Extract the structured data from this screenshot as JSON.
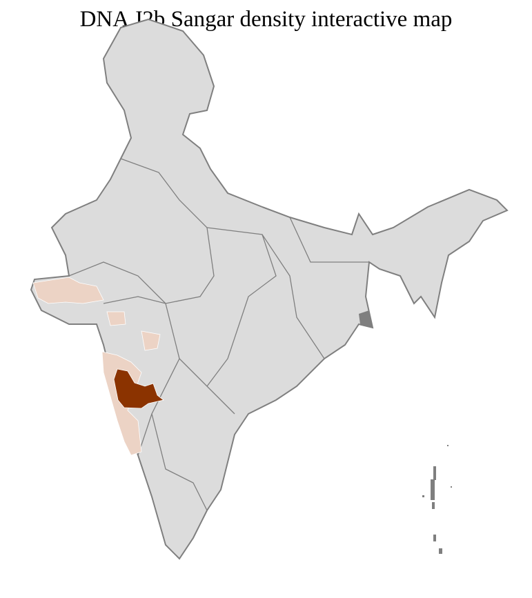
{
  "title": "DNA J2b Sangar density interactive map",
  "colors": {
    "no_data": "#dcdcdc",
    "low_density": "#ecd3c5",
    "high_density": "#8b3300",
    "state_border": "#7f7f7f",
    "district_border": "#ffffff"
  },
  "legend": null
}
